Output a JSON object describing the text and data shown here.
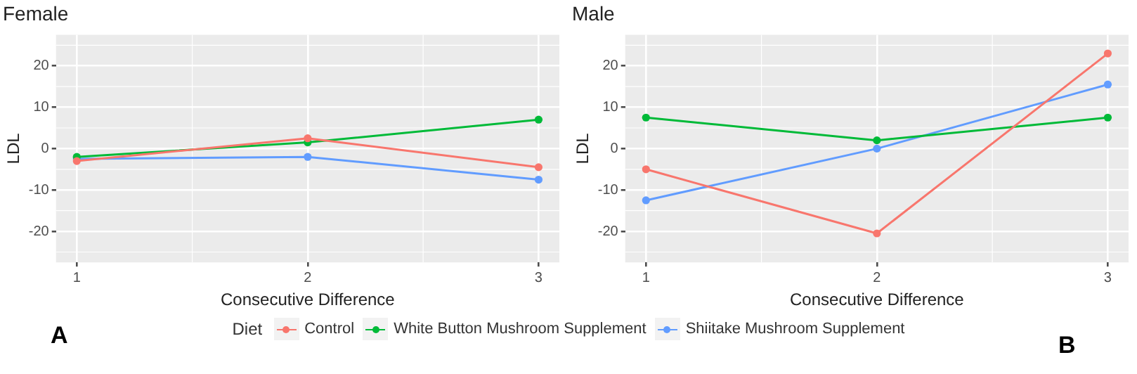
{
  "chart_data": [
    {
      "type": "line",
      "title": "Female",
      "xlabel": "Consecutive Difference",
      "ylabel": "LDL",
      "legend_title": "Diet",
      "legend": "bottom",
      "grid": true,
      "marker": "circle",
      "x": [
        1,
        2,
        3
      ],
      "xlim": [
        0.91,
        3.09
      ],
      "xticks": [
        1,
        2,
        3
      ],
      "ylim": [
        -27.5,
        27.5
      ],
      "yticks": [
        -20,
        -10,
        0,
        10,
        20
      ],
      "annotations": [
        "A"
      ],
      "series": [
        {
          "name": "Control",
          "color": "#f8766d",
          "values": [
            -3,
            2.5,
            -4.5
          ]
        },
        {
          "name": "White Button Mushroom Supplement",
          "color": "#00ba38",
          "values": [
            -2,
            1.5,
            7
          ]
        },
        {
          "name": "Shiitake Mushroom Supplement",
          "color": "#619cff",
          "values": [
            -2.5,
            -2,
            -7.5
          ]
        }
      ]
    },
    {
      "type": "line",
      "title": "Male",
      "xlabel": "Consecutive Difference",
      "ylabel": "LDL",
      "legend": "bottom",
      "grid": true,
      "marker": "circle",
      "x": [
        1,
        2,
        3
      ],
      "xlim": [
        0.91,
        3.09
      ],
      "xticks": [
        1,
        2,
        3
      ],
      "ylim": [
        -27.5,
        27.5
      ],
      "yticks": [
        -20,
        -10,
        0,
        10,
        20
      ],
      "annotations": [
        "B"
      ],
      "series": [
        {
          "name": "Control",
          "color": "#f8766d",
          "values": [
            -5,
            -20.5,
            23
          ]
        },
        {
          "name": "White Button Mushroom Supplement",
          "color": "#00ba38",
          "values": [
            7.5,
            2,
            7.5
          ]
        },
        {
          "name": "Shiitake Mushroom Supplement",
          "color": "#619cff",
          "values": [
            -12.5,
            0,
            15.5
          ]
        }
      ]
    }
  ]
}
